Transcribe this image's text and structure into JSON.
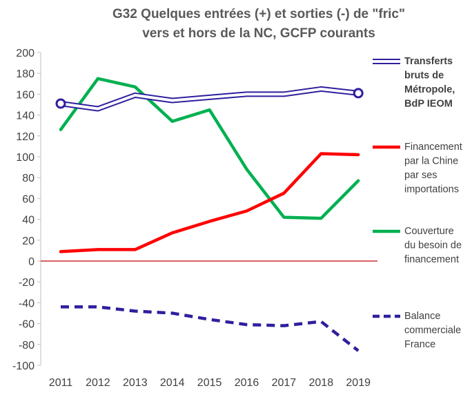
{
  "chart_data": {
    "type": "line",
    "title_lines": [
      "G32 Quelques  entrées (+) et sorties (-) de \"fric\"",
      "vers et hors de la NC, GCFP courants"
    ],
    "categories": [
      "2011",
      "2012",
      "2013",
      "2014",
      "2015",
      "2016",
      "2017",
      "2018",
      "2019"
    ],
    "ylim": [
      -100,
      200
    ],
    "yticks": [
      "200",
      "180",
      "160",
      "140",
      "120",
      "100",
      "80",
      "60",
      "40",
      "20",
      "0",
      "-20",
      "-40",
      "-60",
      "-80",
      "-100"
    ],
    "grid": false,
    "legend_position": "right",
    "colors": {
      "transferts": "#2e1f9e",
      "chine": "#ff0000",
      "couverture": "#00b050",
      "balance": "#2e1f9e",
      "zero_line": "#c00000",
      "axis": "#bfbfbf"
    },
    "series": [
      {
        "name": "Transferts bruts de Métropole, BdP IEOM",
        "legend_lines": [
          "Transferts",
          "bruts de",
          "Métropole,",
          "BdP IEOM"
        ],
        "style": "double",
        "values": [
          151,
          146,
          159,
          154,
          157,
          160,
          160,
          165,
          161
        ]
      },
      {
        "name": "Financement par la Chine par ses importations",
        "legend_lines": [
          "Financement",
          "par la Chine",
          "par ses",
          "importations"
        ],
        "style": "solid",
        "values": [
          9,
          11,
          11,
          27,
          38,
          48,
          65,
          103,
          102
        ]
      },
      {
        "name": "Couverture du besoin de financement",
        "legend_lines": [
          "Couverture",
          "du besoin de",
          "financement"
        ],
        "style": "solid",
        "values": [
          126,
          175,
          167,
          134,
          145,
          88,
          42,
          41,
          77
        ]
      },
      {
        "name": "Balance commerciale France",
        "legend_lines": [
          "Balance",
          "commerciale",
          "France"
        ],
        "style": "dashed",
        "values": [
          -44,
          -44,
          -48,
          -50,
          -56,
          -61,
          -62,
          -58,
          -86
        ]
      }
    ]
  }
}
